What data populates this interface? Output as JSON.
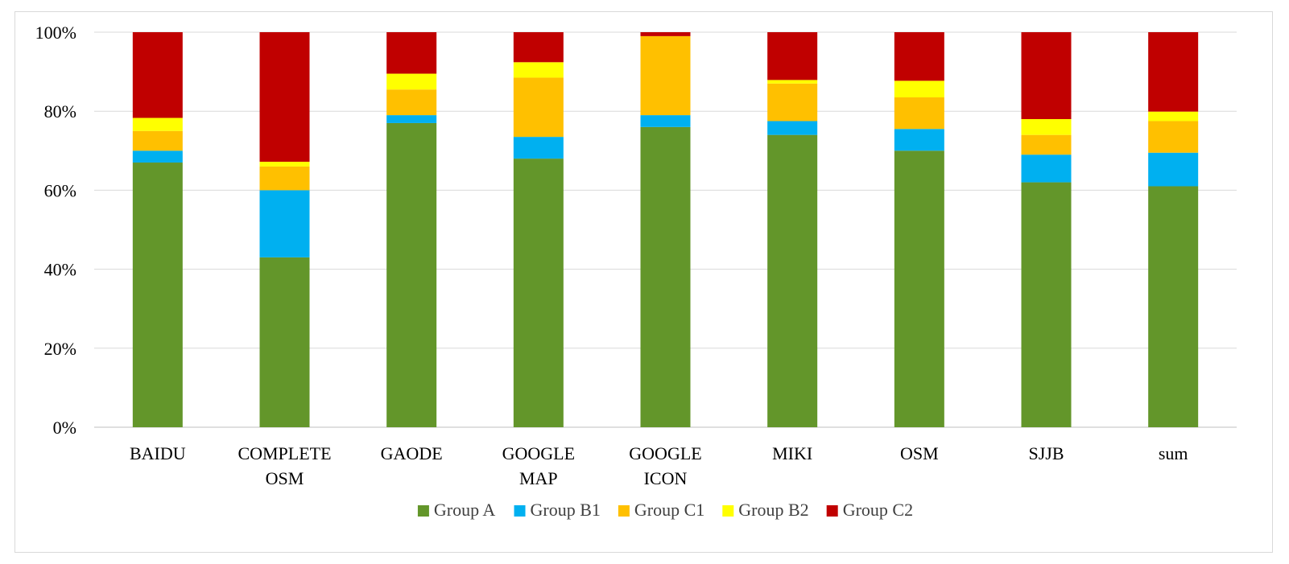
{
  "chart_data": {
    "type": "bar",
    "stacked": true,
    "percent_stacked": true,
    "title": "",
    "xlabel": "",
    "ylabel": "",
    "ylim": [
      0,
      100
    ],
    "y_ticks": [
      "0%",
      "20%",
      "40%",
      "60%",
      "80%",
      "100%"
    ],
    "grid": true,
    "legend_position": "bottom",
    "categories": [
      [
        "BAIDU"
      ],
      [
        "COMPLETE",
        "OSM"
      ],
      [
        "GAODE"
      ],
      [
        "GOOGLE",
        "MAP"
      ],
      [
        "GOOGLE",
        "ICON"
      ],
      [
        "MIKI"
      ],
      [
        "OSM"
      ],
      [
        "SJJB"
      ],
      [
        "sum"
      ]
    ],
    "series": [
      {
        "name": "Group A",
        "color": "#63962A",
        "values": [
          67,
          43,
          77,
          68,
          76,
          74,
          70,
          62,
          61
        ]
      },
      {
        "name": "Group B1",
        "color": "#00B0F0",
        "values": [
          3,
          17,
          2,
          5.5,
          3,
          3.5,
          5.5,
          7,
          8.5
        ]
      },
      {
        "name": "Group C1",
        "color": "#FFC000",
        "values": [
          5,
          6,
          6.5,
          15,
          20,
          9.5,
          8,
          5,
          8
        ]
      },
      {
        "name": "Group B2",
        "color": "#FFFF00",
        "values": [
          3.3,
          1.2,
          4,
          3.9,
          0,
          0.9,
          4.2,
          4,
          2.4
        ]
      },
      {
        "name": "Group C2",
        "color": "#C00000",
        "values": [
          21.7,
          32.8,
          10.5,
          7.6,
          1,
          12.1,
          12.3,
          22,
          20.1
        ]
      }
    ]
  }
}
